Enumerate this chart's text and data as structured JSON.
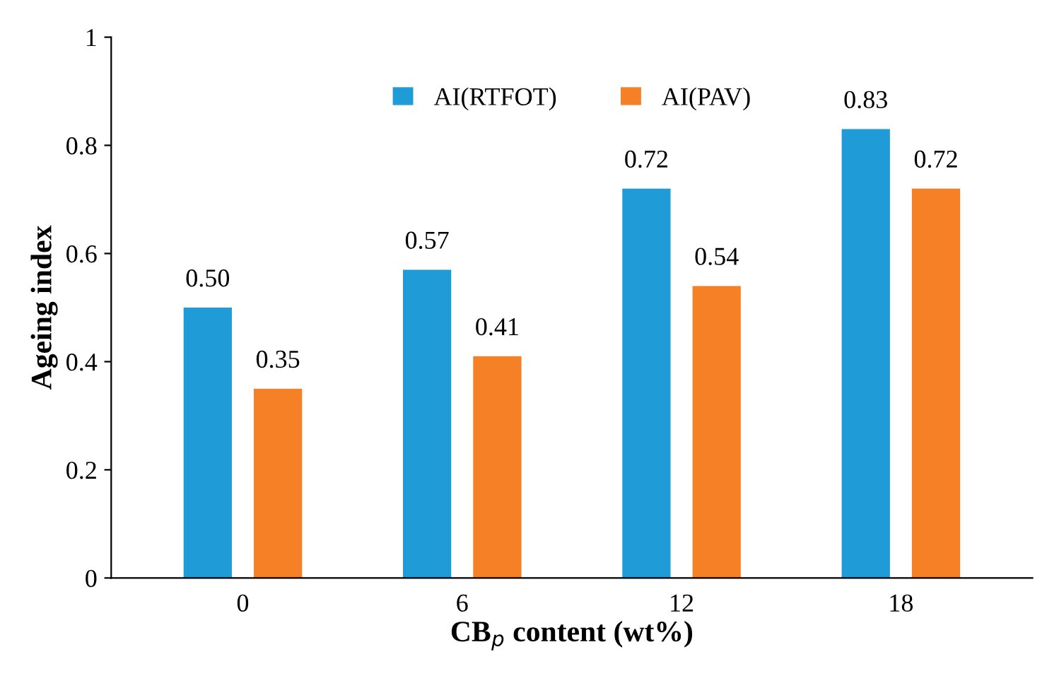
{
  "chart_data": {
    "type": "bar",
    "xlabel": "CB$_{p}$ content (wt%)",
    "ylabel": "Ageing index",
    "categories": [
      "0",
      "6",
      "12",
      "18"
    ],
    "series": [
      {
        "name": "AI(RTFOT)",
        "color": "#1f9bd7",
        "values": [
          0.5,
          0.57,
          0.72,
          0.83
        ],
        "value_labels": [
          "0.50",
          "0.57",
          "0.72",
          "0.83"
        ]
      },
      {
        "name": "AI(PAV)",
        "color": "#f58025",
        "values": [
          0.35,
          0.41,
          0.54,
          0.72
        ],
        "value_labels": [
          "0.35",
          "0.41",
          "0.54",
          "0.72"
        ]
      }
    ],
    "ylim": [
      0,
      1
    ],
    "yticks": [
      0,
      0.2,
      0.4,
      0.6,
      0.8,
      1
    ],
    "legend": "top",
    "grid": false
  }
}
